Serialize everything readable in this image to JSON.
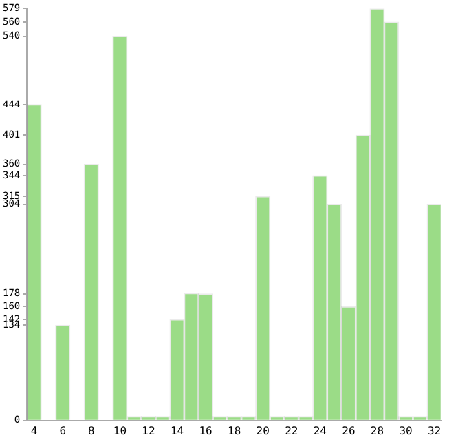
{
  "chart_data": {
    "type": "bar",
    "categories": [
      "4",
      null,
      "6",
      null,
      "8",
      null,
      "10",
      null,
      "12",
      null,
      "14",
      null,
      "16",
      null,
      "18",
      null,
      "20",
      null,
      "22",
      null,
      "24",
      null,
      "26",
      null,
      "28",
      null,
      "30",
      null,
      "32"
    ],
    "values": [
      444,
      null,
      134,
      null,
      360,
      null,
      540,
      0,
      0,
      0,
      142,
      179,
      178,
      0,
      0,
      0,
      315,
      0,
      0,
      0,
      344,
      304,
      160,
      401,
      579,
      560,
      0,
      0,
      304
    ],
    "color": "#9bdc87",
    "ylim": [
      0,
      579
    ],
    "yticks": [
      0,
      134,
      142,
      160,
      178,
      304,
      315,
      344,
      360,
      401,
      444,
      540,
      560,
      579
    ],
    "grid": false
  }
}
